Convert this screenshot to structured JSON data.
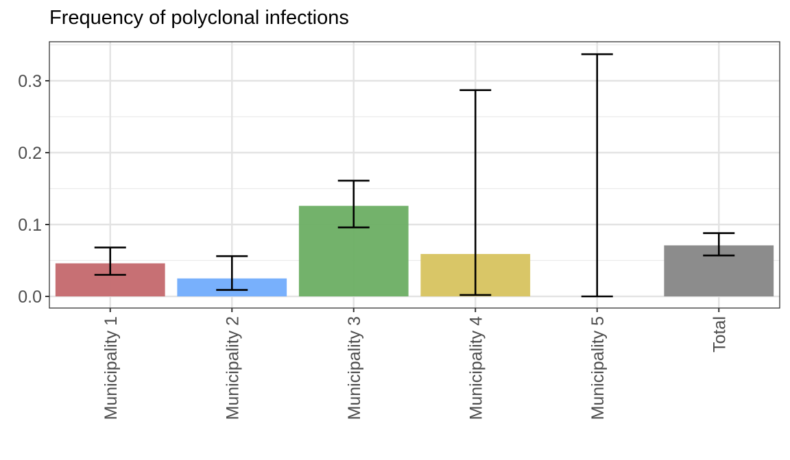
{
  "chart_data": {
    "type": "bar",
    "title": "Frequency of polyclonal infections",
    "xlabel": "",
    "ylabel": "",
    "categories": [
      "Municipality 1",
      "Municipality 2",
      "Municipality 3",
      "Municipality 4",
      "Municipality 5",
      "Total"
    ],
    "values": [
      0.046,
      0.025,
      0.126,
      0.059,
      0.0,
      0.071
    ],
    "error_low": [
      0.03,
      0.009,
      0.096,
      0.002,
      0.0,
      0.057
    ],
    "error_high": [
      0.068,
      0.056,
      0.161,
      0.287,
      0.337,
      0.088
    ],
    "colors": [
      "#c56b70",
      "#74adfc",
      "#6eb066",
      "#d8c462",
      "#888888",
      "#888888"
    ],
    "ylim": [
      -0.017,
      0.354
    ],
    "yticks": [
      0.0,
      0.1,
      0.2,
      0.3
    ],
    "ytick_labels": [
      "0.0",
      "0.1",
      "0.2",
      "0.3"
    ],
    "grid": true,
    "legend": "none"
  }
}
